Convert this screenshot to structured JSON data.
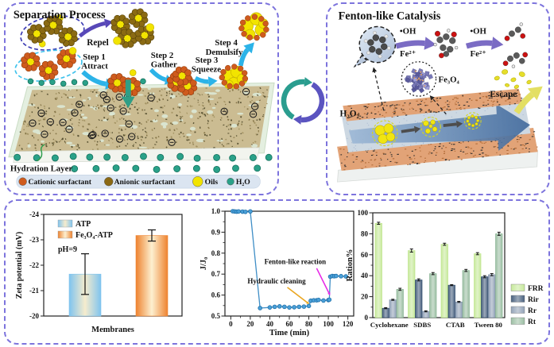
{
  "figure": {
    "separation": {
      "title": "Separation Process",
      "repel": "Repel",
      "steps": [
        {
          "step": "Step 1",
          "action": "Attract"
        },
        {
          "step": "Step 2",
          "action": "Gather"
        },
        {
          "step": "Step 3",
          "action": "Squeeze"
        },
        {
          "step": "Step 4",
          "action": "Demulsify"
        }
      ],
      "hydration_label": "Hydration Layer",
      "legend": [
        {
          "label": "Cationic surfactant",
          "color": "#cf5b1d"
        },
        {
          "label": "Anionic surfactant",
          "color": "#8b6914"
        },
        {
          "label": "Oils",
          "color": "#f2e400"
        },
        {
          "label": "H₂O",
          "color": "#2aa189"
        }
      ]
    },
    "fenton": {
      "title": "Fenton-like Catalysis",
      "radical": "•OH",
      "ion": "Fe²⁺",
      "catalyst": "Fe₃O₄",
      "oxidant": "H₂O₂",
      "escape": "Escape"
    }
  },
  "chart_data": [
    {
      "type": "bar",
      "title": "",
      "xlabel": "Membranes",
      "ylabel": "Zeta potential (mV)",
      "ylim": [
        -20,
        -24
      ],
      "yticks": [
        -24,
        -23,
        -22,
        -21,
        -20
      ],
      "yticklabels": [
        "-24",
        "-23",
        "-22",
        "-21",
        "-20"
      ],
      "note": "pH=9",
      "series": [
        {
          "name": "ATP",
          "value": -21.65,
          "error": 0.8,
          "edge": "#7fc4ef",
          "mid": "#f6eccd"
        },
        {
          "name": "Fe₃O₄-ATP",
          "value": -23.17,
          "error": 0.22,
          "edge": "#ee8330",
          "mid": "#fdf0d0"
        }
      ]
    },
    {
      "type": "line",
      "xlabel": "Time (min)",
      "ylabel": "J/J₀",
      "xlim": [
        -6,
        126
      ],
      "xticks": [
        0,
        20,
        40,
        60,
        80,
        100,
        120
      ],
      "ylim": [
        0.5,
        1.0
      ],
      "yticks": [
        0.5,
        0.6,
        0.7,
        0.8,
        0.9,
        1.0
      ],
      "yticklabels": [
        "0.5",
        "0.6",
        "0.7",
        "0.8",
        "0.9",
        "1.0"
      ],
      "color": "#3f8ec6",
      "points": [
        [
          2,
          1.0
        ],
        [
          4,
          0.999
        ],
        [
          6,
          0.998
        ],
        [
          8,
          0.999
        ],
        [
          12,
          0.998
        ],
        [
          15,
          0.997
        ],
        [
          20,
          0.999
        ],
        [
          30,
          0.538
        ],
        [
          40,
          0.541
        ],
        [
          45,
          0.544
        ],
        [
          50,
          0.546
        ],
        [
          55,
          0.544
        ],
        [
          60,
          0.541
        ],
        [
          65,
          0.542
        ],
        [
          70,
          0.544
        ],
        [
          75,
          0.545
        ],
        [
          80,
          0.548
        ],
        [
          82,
          0.573
        ],
        [
          85,
          0.575
        ],
        [
          88,
          0.575
        ],
        [
          90,
          0.577
        ],
        [
          95,
          0.574
        ],
        [
          100,
          0.576
        ],
        [
          101,
          0.578
        ],
        [
          102,
          0.688
        ],
        [
          104,
          0.691
        ],
        [
          106,
          0.69
        ],
        [
          108,
          0.691
        ],
        [
          113,
          0.69
        ],
        [
          118,
          0.689
        ]
      ],
      "annotations": [
        {
          "text": "Hydraulic cleaning",
          "color": "#eaa620",
          "tx": 47,
          "ty": 0.655,
          "x1": 58,
          "y1": 0.637,
          "x2": 79,
          "y2": 0.562
        },
        {
          "text": "Fenton-like reaction",
          "color": "#e628e6",
          "tx": 66,
          "ty": 0.748,
          "x1": 88,
          "y1": 0.728,
          "x2": 101,
          "y2": 0.606
        }
      ]
    },
    {
      "type": "bar",
      "ylabel": "Ration%",
      "ylim": [
        0,
        100
      ],
      "yticks": [
        0,
        20,
        40,
        60,
        80,
        100
      ],
      "categories": [
        "Cyclohexane",
        "SDBS",
        "CTAB",
        "Tween 80"
      ],
      "legend_position": "right",
      "series": [
        {
          "name": "FRR",
          "color": "#c7e99b",
          "values": [
            90,
            64,
            70,
            61
          ],
          "errors": [
            1,
            1.5,
            1,
            1
          ]
        },
        {
          "name": "Rir",
          "color": "#49617f",
          "values": [
            9,
            36,
            31,
            39
          ],
          "errors": [
            0.5,
            1,
            0.5,
            1
          ]
        },
        {
          "name": "Rr",
          "color": "#93a3b8",
          "values": [
            17,
            6,
            15,
            41
          ],
          "errors": [
            0.5,
            0.5,
            0.5,
            1
          ]
        },
        {
          "name": "Rt",
          "color": "#9cbfa4",
          "values": [
            27,
            42,
            45,
            80
          ],
          "errors": [
            1,
            1,
            1,
            1.5
          ]
        }
      ]
    }
  ]
}
